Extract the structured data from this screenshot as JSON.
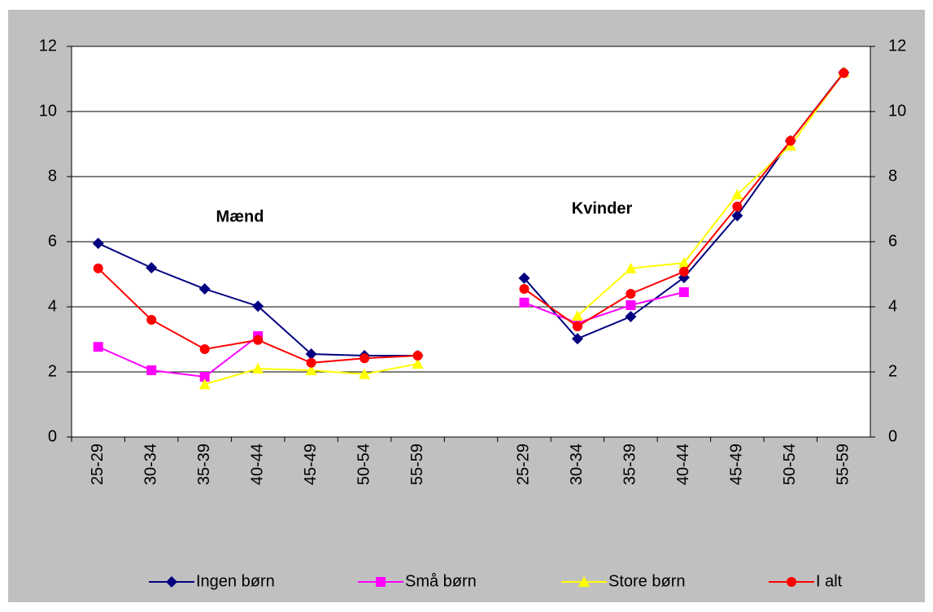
{
  "chart_data": {
    "type": "line",
    "categories": [
      "25-29",
      "30-34",
      "35-39",
      "40-44",
      "45-49",
      "50-54",
      "55-59",
      null,
      "25-29",
      "30-34",
      "35-39",
      "40-44",
      "45-49",
      "50-54",
      "55-59"
    ],
    "series": [
      {
        "name": "Ingen børn",
        "color": "#000080",
        "marker": "diamond",
        "values": [
          5.95,
          5.2,
          4.55,
          4.02,
          2.55,
          2.5,
          2.5,
          null,
          4.88,
          3.02,
          3.7,
          4.9,
          6.8,
          9.1,
          11.2
        ]
      },
      {
        "name": "Små børn",
        "color": "#ff00ff",
        "marker": "square",
        "values": [
          2.77,
          2.05,
          1.85,
          3.1,
          null,
          null,
          null,
          null,
          4.13,
          3.5,
          4.05,
          4.45,
          null,
          null,
          null
        ]
      },
      {
        "name": "Store børn",
        "color": "#ffff00",
        "marker": "triangle",
        "values": [
          null,
          null,
          1.62,
          2.1,
          2.05,
          1.93,
          2.25,
          null,
          null,
          3.72,
          5.18,
          5.35,
          7.45,
          8.95,
          11.2
        ]
      },
      {
        "name": "I alt",
        "color": "#ff0000",
        "marker": "circle",
        "values": [
          5.18,
          3.6,
          2.7,
          2.98,
          2.28,
          2.42,
          2.5,
          null,
          4.55,
          3.4,
          4.4,
          5.08,
          7.08,
          9.1,
          11.18
        ]
      }
    ],
    "annotations": [
      "Mænd",
      "Kvinder"
    ],
    "ylim": [
      0,
      12
    ],
    "yticks": [
      0,
      2,
      4,
      6,
      8,
      10,
      12
    ],
    "y2lim": [
      0,
      12
    ],
    "y2ticks": [
      0,
      2,
      4,
      6,
      8,
      10,
      12
    ],
    "grid": true,
    "legend": "bottom"
  }
}
